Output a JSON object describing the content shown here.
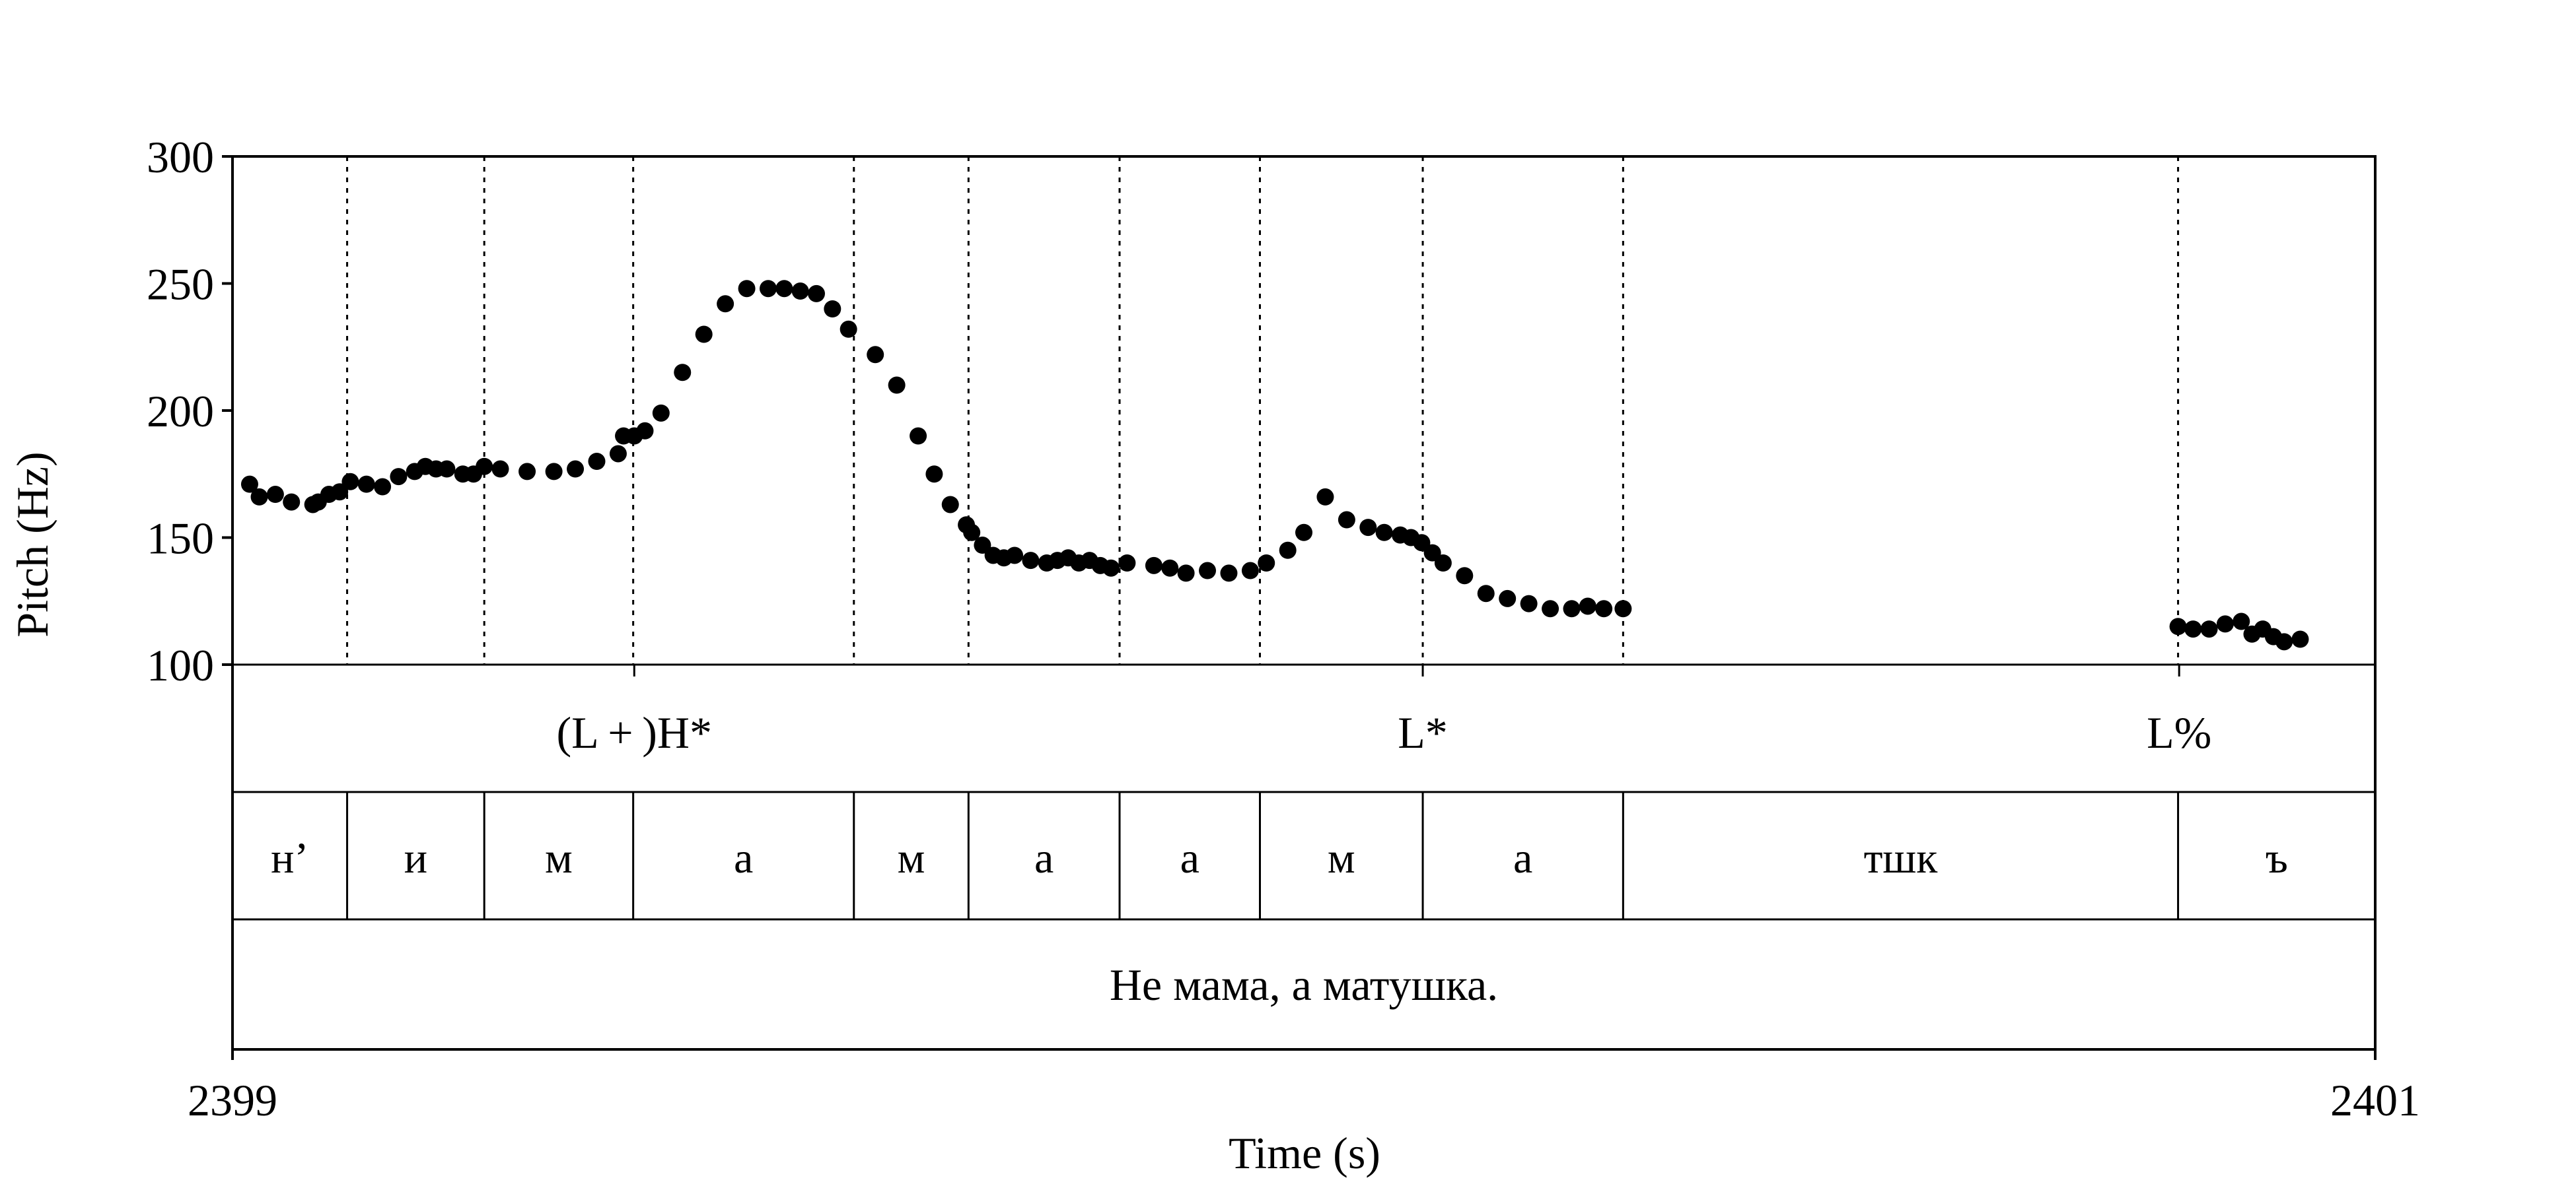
{
  "chart_data": {
    "type": "scatter",
    "xlabel": "Time (s)",
    "ylabel": "Pitch (Hz)",
    "xlim": [
      2399,
      2401
    ],
    "ylim": [
      100,
      300
    ],
    "xticks": [
      "2399",
      "2401"
    ],
    "yticks": [
      100,
      150,
      200,
      250,
      300
    ],
    "tones": [
      {
        "label": "(L + )H*",
        "time": 2399.375
      },
      {
        "label": "L*",
        "time": 2400.111
      },
      {
        "label": "L%",
        "time": 2400.817
      }
    ],
    "segment_boundaries": [
      2399.107,
      2399.235,
      2399.374,
      2399.58,
      2399.687,
      2399.828,
      2399.959,
      2400.111,
      2400.298,
      2400.816
    ],
    "segments": [
      {
        "label": "н’",
        "start": 2399.0,
        "end": 2399.107
      },
      {
        "label": "и",
        "start": 2399.107,
        "end": 2399.235
      },
      {
        "label": "м",
        "start": 2399.235,
        "end": 2399.374
      },
      {
        "label": "а",
        "start": 2399.374,
        "end": 2399.58
      },
      {
        "label": "м",
        "start": 2399.58,
        "end": 2399.687
      },
      {
        "label": "а",
        "start": 2399.687,
        "end": 2399.828
      },
      {
        "label": "а",
        "start": 2399.828,
        "end": 2399.959
      },
      {
        "label": "м",
        "start": 2399.959,
        "end": 2400.111
      },
      {
        "label": "а",
        "start": 2400.111,
        "end": 2400.298
      },
      {
        "label": "тшк",
        "start": 2400.298,
        "end": 2400.816
      },
      {
        "label": "ъ",
        "start": 2400.816,
        "end": 2401.0
      }
    ],
    "sentence": "Не мама, а матушка.",
    "pitch_series": [
      {
        "x": [
          2399.016,
          2399.025,
          2399.04,
          2399.055,
          2399.075,
          2399.08,
          2399.09,
          2399.1,
          2399.11,
          2399.125,
          2399.14,
          2399.155,
          2399.17,
          2399.18,
          2399.19,
          2399.2,
          2399.215,
          2399.225,
          2399.235,
          2399.25,
          2399.275,
          2399.3,
          2399.32,
          2399.34,
          2399.36,
          2399.365,
          2399.375,
          2399.385,
          2399.4,
          2399.42,
          2399.44,
          2399.46,
          2399.48,
          2399.5,
          2399.515,
          2399.53,
          2399.545,
          2399.56,
          2399.575,
          2399.6,
          2399.62,
          2399.64,
          2399.655,
          2399.67,
          2399.685,
          2399.69,
          2399.7,
          2399.71,
          2399.72,
          2399.73,
          2399.745,
          2399.76,
          2399.77,
          2399.78,
          2399.79,
          2399.8,
          2399.81,
          2399.82,
          2399.835,
          2399.86,
          2399.875,
          2399.89,
          2399.91,
          2399.93,
          2399.95,
          2399.965,
          2399.985,
          2400.0,
          2400.02,
          2400.04,
          2400.06,
          2400.075,
          2400.09,
          2400.1,
          2400.11,
          2400.12,
          2400.13,
          2400.15,
          2400.17,
          2400.19,
          2400.21,
          2400.23,
          2400.25,
          2400.265,
          2400.28,
          2400.298
        ],
        "y": [
          171,
          166,
          167,
          164,
          163,
          164,
          167,
          168,
          172,
          171,
          170,
          174,
          176,
          178,
          177,
          177,
          175,
          175,
          178,
          177,
          176,
          176,
          177,
          180,
          183,
          190,
          190,
          192,
          199,
          215,
          230,
          242,
          248,
          248,
          248,
          247,
          246,
          240,
          232,
          222,
          210,
          190,
          175,
          163,
          155,
          152,
          147,
          143,
          142,
          143,
          141,
          140,
          141,
          142,
          140,
          141,
          139,
          138,
          140,
          139,
          138,
          136,
          137,
          136,
          137,
          140,
          145,
          152,
          166,
          157,
          154,
          152,
          151,
          150,
          148,
          144,
          140,
          135,
          128,
          126,
          124,
          122,
          122,
          123,
          122,
          122
        ]
      },
      {
        "x": [
          2400.816,
          2400.83,
          2400.845,
          2400.86,
          2400.875,
          2400.885,
          2400.895,
          2400.905,
          2400.915,
          2400.93
        ],
        "y": [
          115,
          114,
          114,
          116,
          117,
          112,
          114,
          111,
          109,
          110
        ]
      }
    ]
  }
}
